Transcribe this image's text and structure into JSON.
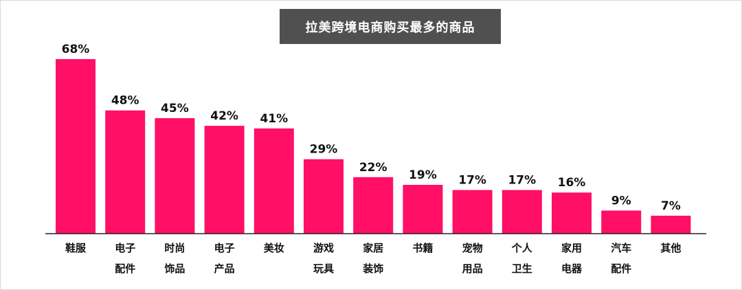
{
  "chart_data": {
    "type": "bar",
    "title": "拉美跨境电商购买最多的商品",
    "categories": [
      [
        "鞋服"
      ],
      [
        "电子",
        "配件"
      ],
      [
        "时尚",
        "饰品"
      ],
      [
        "电子",
        "产品"
      ],
      [
        "美妆"
      ],
      [
        "游戏",
        "玩具"
      ],
      [
        "家居",
        "装饰"
      ],
      [
        "书籍"
      ],
      [
        "宠物",
        "用品"
      ],
      [
        "个人",
        "卫生"
      ],
      [
        "家用",
        "电器"
      ],
      [
        "汽车",
        "配件"
      ],
      [
        "其他"
      ]
    ],
    "values": [
      68,
      48,
      45,
      42,
      41,
      29,
      22,
      19,
      17,
      17,
      16,
      9,
      7
    ],
    "value_labels": [
      "68%",
      "48%",
      "45%",
      "42%",
      "41%",
      "29%",
      "22%",
      "19%",
      "17%",
      "17%",
      "16%",
      "9%",
      "7%"
    ],
    "unit": "%",
    "ylim": [
      0,
      68
    ],
    "grid": false,
    "bar_color": "#ff0f66"
  },
  "colors": {
    "bar": "#ff0f66",
    "title_bg": "#505050",
    "title_text": "#ffffff"
  }
}
